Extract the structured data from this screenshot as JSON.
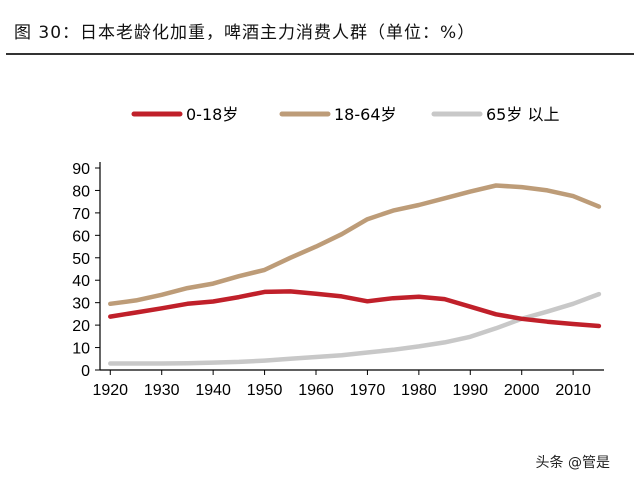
{
  "chart_data": {
    "type": "line",
    "title": "图 30：日本老龄化加重，啤酒主力消费人群（单位：%）",
    "xlabel": "",
    "ylabel": "",
    "xlim": [
      1918,
      2016
    ],
    "ylim": [
      0,
      90
    ],
    "x_ticks": [
      1920,
      1930,
      1940,
      1950,
      1960,
      1970,
      1980,
      1990,
      2000,
      2010
    ],
    "y_ticks": [
      0,
      10,
      20,
      30,
      40,
      50,
      60,
      70,
      80,
      90
    ],
    "grid": false,
    "legend_position": "top",
    "x": [
      1920,
      1925,
      1930,
      1935,
      1940,
      1945,
      1950,
      1955,
      1960,
      1965,
      1970,
      1975,
      1980,
      1985,
      1990,
      1995,
      2000,
      2005,
      2010,
      2015
    ],
    "series": [
      {
        "name": "0-18岁",
        "color": "#c0202a",
        "values": [
          23.8,
          25.6,
          27.5,
          29.5,
          30.5,
          32.5,
          34.8,
          35.0,
          34.0,
          32.8,
          30.6,
          32.0,
          32.6,
          31.6,
          28.2,
          24.8,
          22.8,
          21.5,
          20.5,
          19.6
        ]
      },
      {
        "name": "18-64岁",
        "color": "#bd9c78",
        "values": [
          29.5,
          31.0,
          33.5,
          36.5,
          38.5,
          41.8,
          44.6,
          50.0,
          55.0,
          60.5,
          67.2,
          71.0,
          73.5,
          76.5,
          79.5,
          82.2,
          81.5,
          80.0,
          77.5,
          72.8
        ]
      },
      {
        "name": "65岁 以上",
        "color": "#c8c8c8",
        "values": [
          2.9,
          2.9,
          2.9,
          3.0,
          3.3,
          3.6,
          4.2,
          5.0,
          5.8,
          6.6,
          7.8,
          9.0,
          10.5,
          12.3,
          14.8,
          18.6,
          22.8,
          26.0,
          29.5,
          33.8
        ]
      }
    ]
  },
  "watermark": "头条 @管是"
}
